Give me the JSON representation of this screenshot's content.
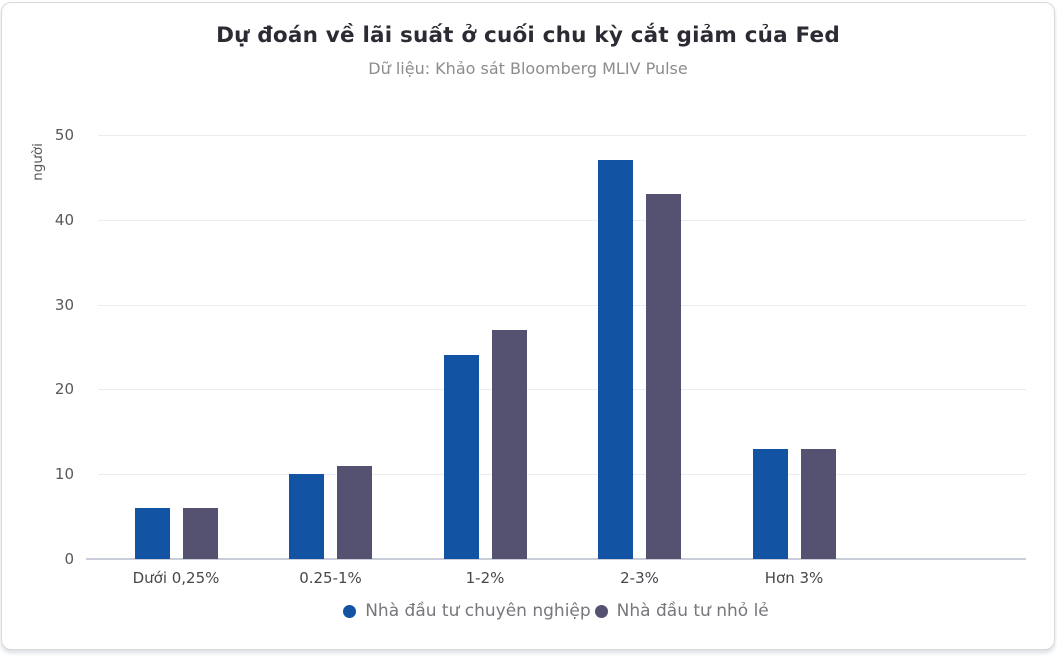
{
  "chart_data": {
    "type": "bar",
    "title": "Dự đoán về lãi suất ở cuối chu kỳ cắt giảm của Fed",
    "subtitle": "Dữ liệu: Khảo sát Bloomberg MLIV Pulse",
    "ylabel": "người",
    "xlabel": "",
    "categories": [
      "Dưới 0,25%",
      "0.25-1%",
      "1-2%",
      "2-3%",
      "Hơn 3%"
    ],
    "series": [
      {
        "name": "Nhà đầu tư chuyên nghiệp",
        "color": "#1353a4",
        "values": [
          6,
          10,
          24,
          47,
          13
        ]
      },
      {
        "name": "Nhà đầu tư nhỏ lẻ",
        "color": "#555170",
        "values": [
          6,
          11,
          27,
          43,
          13
        ]
      }
    ],
    "ylim": [
      0,
      50
    ],
    "yticks": [
      0,
      10,
      20,
      30,
      40,
      50
    ],
    "grid": true,
    "legend_position": "bottom"
  },
  "colors": {
    "professional_bar": "#1353a4",
    "retail_bar": "#555170",
    "gridline": "#ebecf0",
    "zero_axis": "#c9ced9",
    "title_text": "#2b2b33",
    "subtitle_text": "#8c8c8c",
    "card_border": "#d9d9dd"
  }
}
